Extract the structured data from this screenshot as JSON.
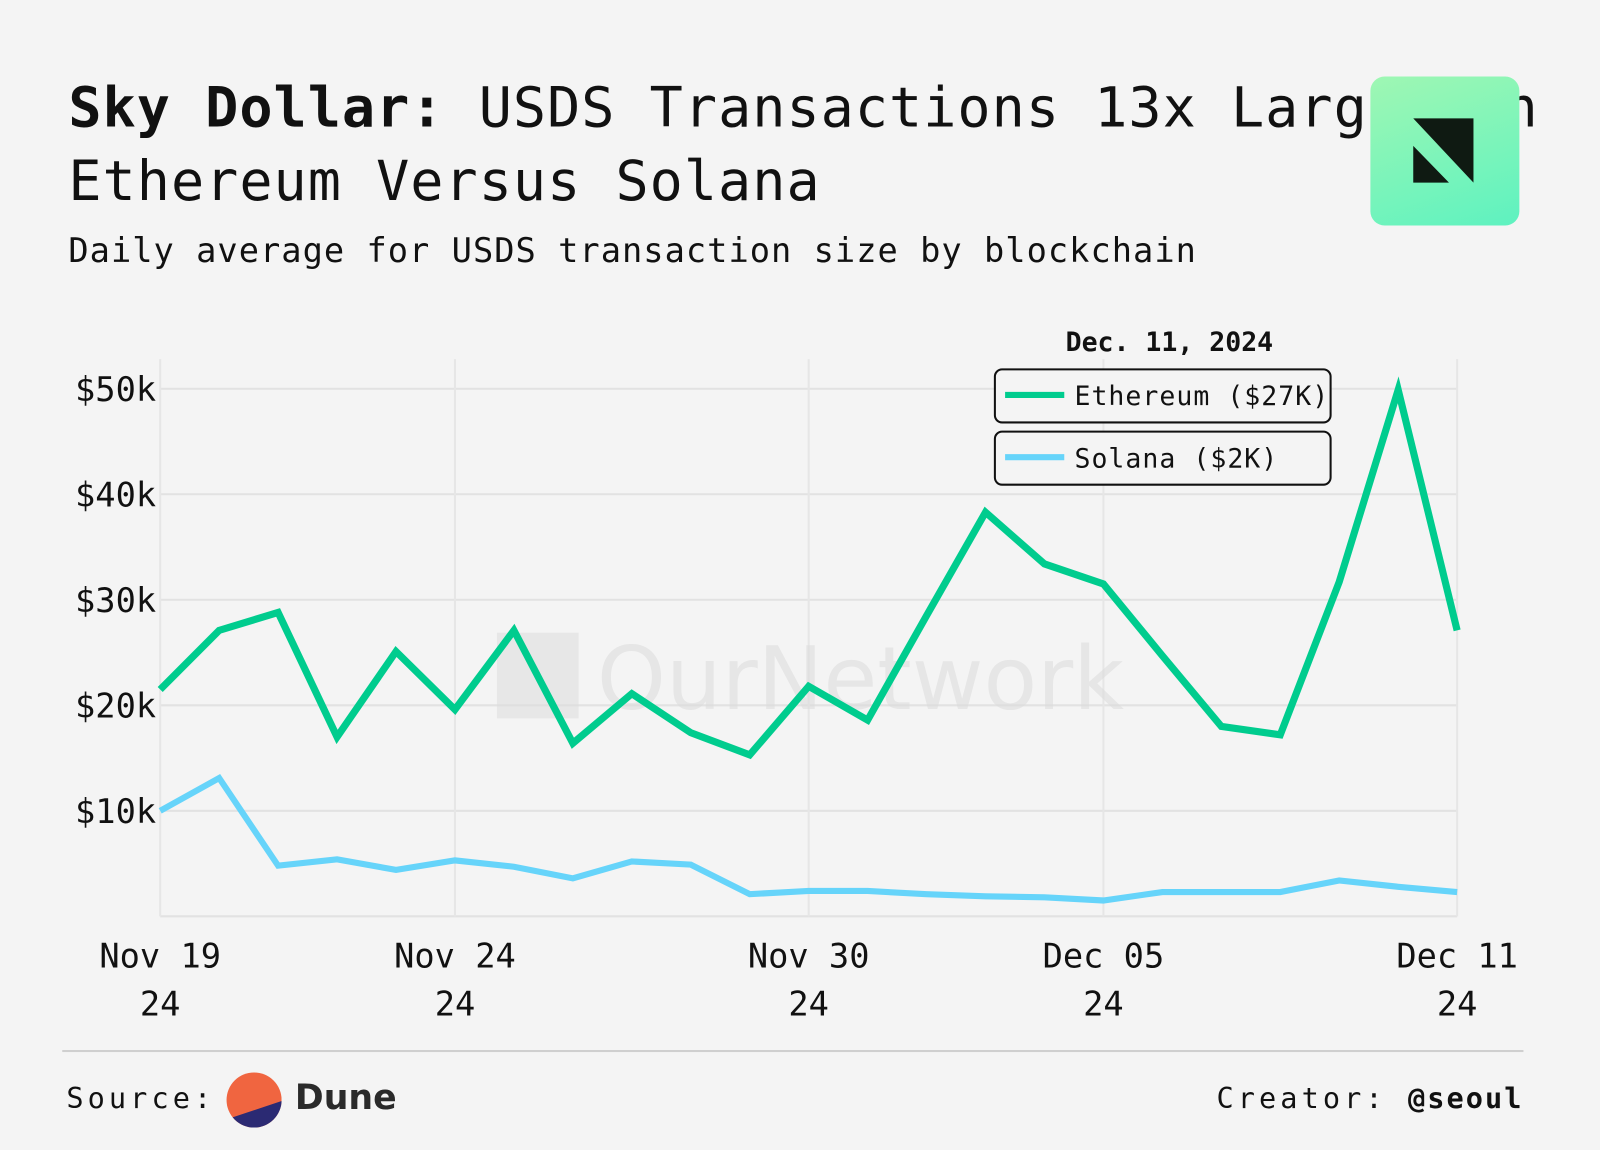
{
  "header": {
    "title_bold": "Sky Dollar:",
    "title_rest": " USDS Transactions 13x Larger on Ethereum Versus Solana",
    "subtitle": "Daily average for USDS transaction size by blockchain"
  },
  "brand": {
    "logo_icon": "ournetwork-logo-icon",
    "watermark": "OurNetwork",
    "accent": "#7af5bb"
  },
  "footer": {
    "source_label": "Source:",
    "source_name": "Dune",
    "creator_label": "Creator:",
    "creator_handle": "@seoul"
  },
  "chart_data": {
    "type": "line",
    "title": "",
    "xlabel": "",
    "ylabel": "",
    "x": [
      "Nov 19",
      "Nov 20",
      "Nov 21",
      "Nov 22",
      "Nov 23",
      "Nov 24",
      "Nov 25",
      "Nov 26",
      "Nov 27",
      "Nov 28",
      "Nov 29",
      "Nov 30",
      "Dec 01",
      "Dec 02",
      "Dec 03",
      "Dec 04",
      "Dec 05",
      "Dec 06",
      "Dec 07",
      "Dec 08",
      "Dec 09",
      "Dec 10",
      "Dec 11"
    ],
    "x_ticks": [
      {
        "index": 0,
        "line1": "Nov 19",
        "line2": "24"
      },
      {
        "index": 5,
        "line1": "Nov 24",
        "line2": "24"
      },
      {
        "index": 11,
        "line1": "Nov 30",
        "line2": "24"
      },
      {
        "index": 16,
        "line1": "Dec 05",
        "line2": "24"
      },
      {
        "index": 22,
        "line1": "Dec 11",
        "line2": "24"
      }
    ],
    "y_ticks": [
      {
        "value": 10000,
        "label": "$10k"
      },
      {
        "value": 20000,
        "label": "$20k"
      },
      {
        "value": 30000,
        "label": "$30k"
      },
      {
        "value": 40000,
        "label": "$40k"
      },
      {
        "value": 50000,
        "label": "$50k"
      }
    ],
    "ylim": [
      0,
      52000
    ],
    "grid": true,
    "legend": {
      "placement": "top-right",
      "title": "Dec. 11, 2024",
      "entries": [
        "Ethereum ($27K)",
        "Solana ($2K)"
      ]
    },
    "series": [
      {
        "name": "Ethereum",
        "color": "#00cc8e",
        "values": [
          21500,
          27100,
          28800,
          17000,
          25100,
          19600,
          27100,
          16400,
          21100,
          17400,
          15300,
          21800,
          18600,
          28500,
          38300,
          33400,
          31500,
          24700,
          18000,
          17200,
          31700,
          49900,
          27100
        ]
      },
      {
        "name": "Solana",
        "color": "#66d4fa",
        "values": [
          10000,
          13100,
          4800,
          5400,
          4400,
          5300,
          4700,
          3600,
          5200,
          4900,
          2100,
          2400,
          2400,
          2100,
          1900,
          1800,
          1500,
          2300,
          2300,
          2300,
          3400,
          2800,
          2300
        ]
      }
    ]
  }
}
